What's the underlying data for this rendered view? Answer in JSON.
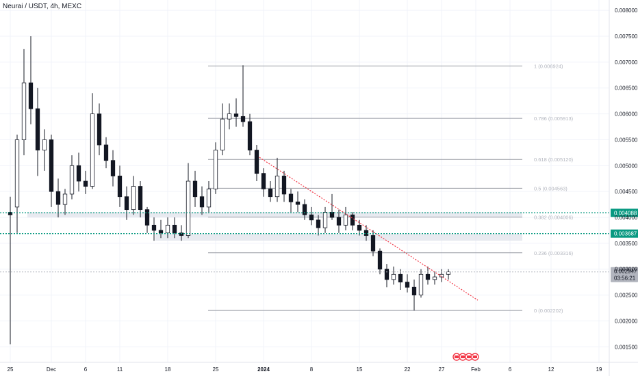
{
  "header": {
    "title": "Neurai / USDT, 4h, MEXC"
  },
  "colors": {
    "candle": "#131722",
    "grid": "#f0f3fa",
    "fib": "#9598a1",
    "fib_text": "#b2b5be",
    "zone": "#e0e3eb",
    "support": "#089981",
    "trend": "#f23645",
    "last_price_bg": "#b2b5be",
    "axis_text": "#131722"
  },
  "chart_data": {
    "type": "candlestick",
    "title": "Neurai / USDT, 4h, MEXC",
    "xlabel": "",
    "ylabel": "",
    "ylim": [
      0.0012,
      0.0082
    ],
    "grid": false,
    "y_ticks": [
      "0.008000",
      "0.007500",
      "0.007000",
      "0.006500",
      "0.006000",
      "0.005500",
      "0.005000",
      "0.004500",
      "0.004000",
      "0.003500",
      "0.003000",
      "0.002500",
      "0.002000",
      "0.001500"
    ],
    "x_ticks": [
      {
        "label": "25",
        "t": 0,
        "bold": false
      },
      {
        "label": "Dec",
        "t": 6,
        "bold": false
      },
      {
        "label": "6",
        "t": 11,
        "bold": false
      },
      {
        "label": "11",
        "t": 16,
        "bold": false
      },
      {
        "label": "18",
        "t": 23,
        "bold": false
      },
      {
        "label": "25",
        "t": 30,
        "bold": false
      },
      {
        "label": "2024",
        "t": 37,
        "bold": true
      },
      {
        "label": "8",
        "t": 44,
        "bold": false
      },
      {
        "label": "15",
        "t": 51,
        "bold": false
      },
      {
        "label": "22",
        "t": 58,
        "bold": false
      },
      {
        "label": "27",
        "t": 63,
        "bold": false
      },
      {
        "label": "Feb",
        "t": 68,
        "bold": false
      },
      {
        "label": "6",
        "t": 73,
        "bold": false
      },
      {
        "label": "12",
        "t": 79,
        "bold": false
      },
      {
        "label": "19",
        "t": 86,
        "bold": false
      }
    ],
    "x_range": [
      -1.5,
      87.5
    ],
    "fib_levels": [
      {
        "label": "1 (0.006924)",
        "value": 0.006924
      },
      {
        "label": "0.786 (0.005913)",
        "value": 0.005913
      },
      {
        "label": "0.618 (0.005120)",
        "value": 0.00512
      },
      {
        "label": "0.5 (0.004563)",
        "value": 0.004563
      },
      {
        "label": "0.382 (0.004006)",
        "value": 0.004006
      },
      {
        "label": "0.236 (0.003316)",
        "value": 0.003316
      },
      {
        "label": "0 (0.002202)",
        "value": 0.002202
      }
    ],
    "fib_x_range": [
      28.9,
      74.8
    ],
    "zones": [
      {
        "x0": 2.5,
        "x1": 74.8,
        "y0": 0.004,
        "y1": 0.0041
      },
      {
        "x0": 21.2,
        "x1": 74.8,
        "y0": 0.00355,
        "y1": 0.00368
      }
    ],
    "support_lines": [
      {
        "value": 0.004088,
        "label": "0.004088"
      },
      {
        "value": 0.003687,
        "label": "0.003687"
      }
    ],
    "trend_line": {
      "x0": 36.4,
      "y0": 0.00516,
      "x1": 68.3,
      "y1": 0.0024
    },
    "last_price": {
      "value": 0.002947,
      "label": "0.002947",
      "countdown": "03:56:21"
    },
    "events_at": 67,
    "series": [
      {
        "name": "",
        "ohlc": [
          [
            0.0041,
            0.0044,
            0.00155,
            0.00405
          ],
          [
            0.0042,
            0.0056,
            0.0037,
            0.0055
          ],
          [
            0.0055,
            0.00725,
            0.0052,
            0.0066
          ],
          [
            0.0066,
            0.0075,
            0.0058,
            0.0061
          ],
          [
            0.0061,
            0.0065,
            0.0048,
            0.0053
          ],
          [
            0.0053,
            0.0057,
            0.0049,
            0.0055
          ],
          [
            0.0055,
            0.0056,
            0.0042,
            0.0045
          ],
          [
            0.0045,
            0.00475,
            0.004,
            0.00425
          ],
          [
            0.00425,
            0.00455,
            0.00405,
            0.00445
          ],
          [
            0.00445,
            0.0052,
            0.00435,
            0.005
          ],
          [
            0.005,
            0.00525,
            0.0045,
            0.0047
          ],
          [
            0.0047,
            0.0049,
            0.00445,
            0.0046
          ],
          [
            0.0046,
            0.0064,
            0.00455,
            0.006
          ],
          [
            0.006,
            0.0062,
            0.0052,
            0.0054
          ],
          [
            0.0054,
            0.00555,
            0.00495,
            0.0051
          ],
          [
            0.0051,
            0.0053,
            0.0046,
            0.0048
          ],
          [
            0.0048,
            0.005,
            0.0042,
            0.0044
          ],
          [
            0.0044,
            0.0046,
            0.00395,
            0.00415
          ],
          [
            0.00415,
            0.0048,
            0.00405,
            0.0046
          ],
          [
            0.0046,
            0.0047,
            0.004,
            0.00415
          ],
          [
            0.00415,
            0.0042,
            0.0037,
            0.00385
          ],
          [
            0.00385,
            0.004,
            0.00355,
            0.00375
          ],
          [
            0.00375,
            0.00395,
            0.0036,
            0.0037
          ],
          [
            0.0037,
            0.004,
            0.0036,
            0.00385
          ],
          [
            0.00385,
            0.004,
            0.0036,
            0.0037
          ],
          [
            0.0037,
            0.00385,
            0.00355,
            0.00365
          ],
          [
            0.00365,
            0.00505,
            0.0036,
            0.0047
          ],
          [
            0.0047,
            0.0049,
            0.0042,
            0.0044
          ],
          [
            0.0044,
            0.0046,
            0.00405,
            0.0042
          ],
          [
            0.0042,
            0.0047,
            0.0041,
            0.00455
          ],
          [
            0.00455,
            0.00545,
            0.00445,
            0.0053
          ],
          [
            0.0053,
            0.0062,
            0.0052,
            0.0059
          ],
          [
            0.0059,
            0.0062,
            0.0057,
            0.006
          ],
          [
            0.006,
            0.0063,
            0.00575,
            0.00595
          ],
          [
            0.00595,
            0.00694,
            0.00575,
            0.00585
          ],
          [
            0.00585,
            0.006,
            0.0052,
            0.0053
          ],
          [
            0.0053,
            0.0054,
            0.0047,
            0.00485
          ],
          [
            0.00485,
            0.00495,
            0.0044,
            0.00455
          ],
          [
            0.00455,
            0.0047,
            0.0043,
            0.0044
          ],
          [
            0.0044,
            0.00515,
            0.0043,
            0.0048
          ],
          [
            0.0048,
            0.0049,
            0.0043,
            0.00445
          ],
          [
            0.00445,
            0.00455,
            0.0041,
            0.0043
          ],
          [
            0.0043,
            0.0045,
            0.0041,
            0.00425
          ],
          [
            0.00425,
            0.00435,
            0.00395,
            0.00405
          ],
          [
            0.00405,
            0.0042,
            0.00385,
            0.00395
          ],
          [
            0.00395,
            0.00405,
            0.00365,
            0.0038
          ],
          [
            0.0038,
            0.0042,
            0.0037,
            0.0041
          ],
          [
            0.0041,
            0.00445,
            0.00395,
            0.004
          ],
          [
            0.004,
            0.00415,
            0.0037,
            0.00385
          ],
          [
            0.00385,
            0.0042,
            0.00375,
            0.00405
          ],
          [
            0.00405,
            0.0041,
            0.00375,
            0.00385
          ],
          [
            0.00385,
            0.00395,
            0.00365,
            0.00375
          ],
          [
            0.00375,
            0.00385,
            0.00355,
            0.00365
          ],
          [
            0.00365,
            0.00375,
            0.00325,
            0.00335
          ],
          [
            0.00335,
            0.0034,
            0.0029,
            0.003
          ],
          [
            0.003,
            0.0031,
            0.00265,
            0.0028
          ],
          [
            0.0028,
            0.00305,
            0.0027,
            0.0029
          ],
          [
            0.0029,
            0.003,
            0.0026,
            0.00275
          ],
          [
            0.00275,
            0.0029,
            0.00255,
            0.00265
          ],
          [
            0.00265,
            0.0028,
            0.0022,
            0.0025
          ],
          [
            0.0025,
            0.003,
            0.00245,
            0.0029
          ],
          [
            0.0029,
            0.00305,
            0.0027,
            0.0028
          ],
          [
            0.0028,
            0.00295,
            0.0027,
            0.00285
          ],
          [
            0.00285,
            0.003,
            0.00275,
            0.0029
          ],
          [
            0.0029,
            0.003,
            0.0028,
            0.00295
          ]
        ]
      }
    ]
  }
}
